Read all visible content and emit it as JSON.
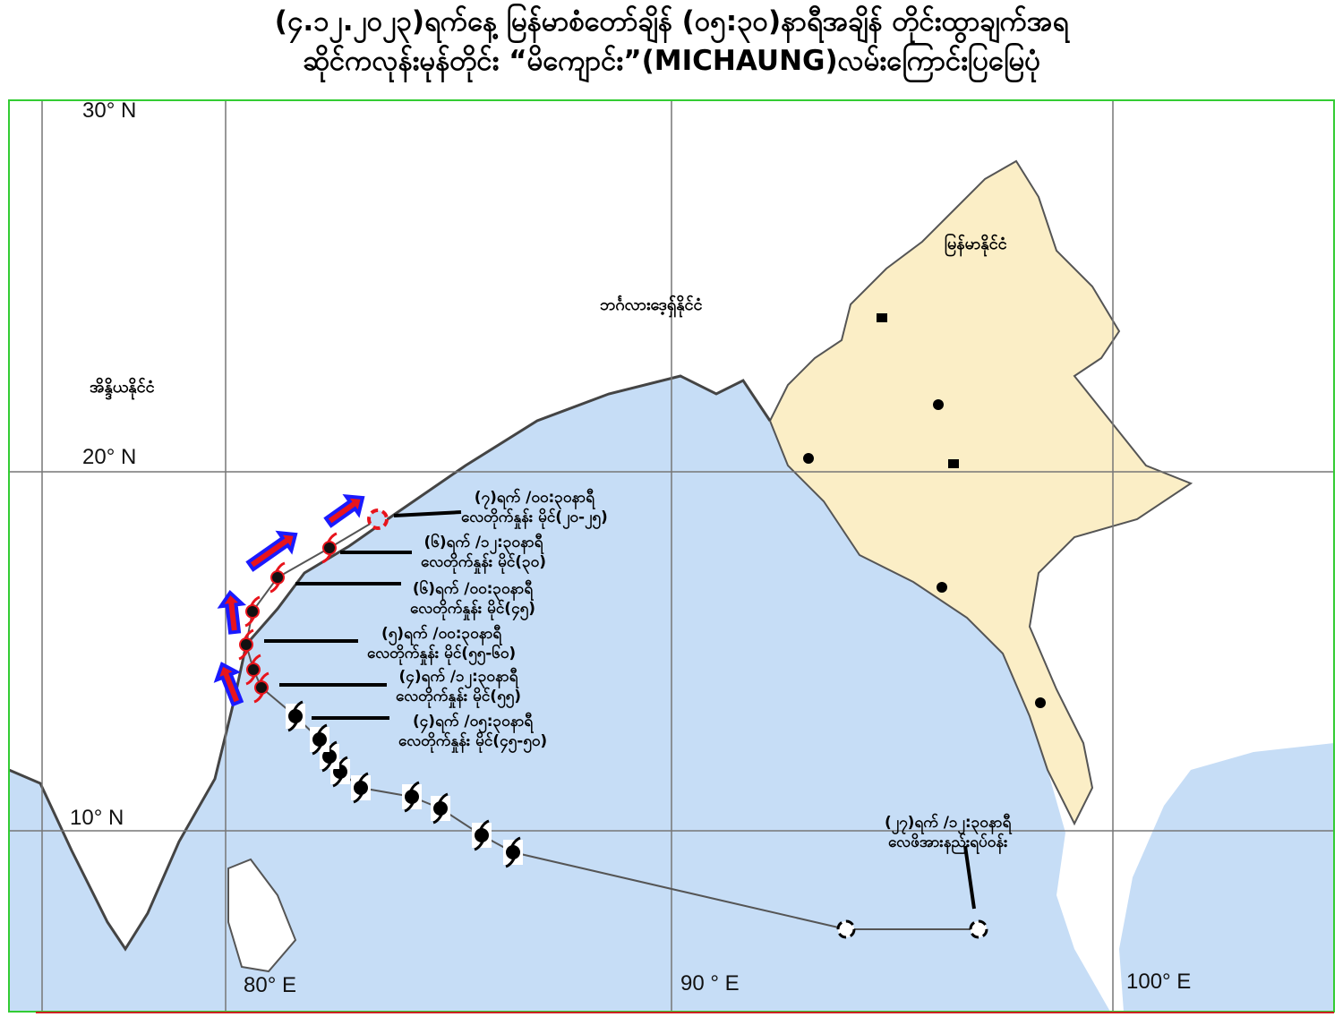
{
  "title": {
    "line1": "(၄.၁၂.၂၀၂၃)ရက်နေ့ မြန်မာစံတော်ချိန် (၀၅:၃၀)နာရီအချိန် တိုင်းထွာချက်အရ",
    "line2": "ဆိုင်ကလုန်းမုန်တိုင်း “မိကျောင်း”(MICHAUNG)လမ်းကြောင်းပြမြေပုံ"
  },
  "grid_labels": {
    "lat30": "30°  N",
    "lat20": "20°  N",
    "lat10": "10°  N",
    "lon80": "80°  E",
    "lon90": "90  °  E",
    "lon100": "100°  E"
  },
  "countries": {
    "india": "အိန္ဒိယနိုင်ငံ",
    "bangladesh": "ဘင်္ဂလားဒေ့ရှ်နိုင်ငံ",
    "myanmar": "မြန်မာနိုင်ငံ"
  },
  "track_labels": [
    {
      "time": "(၇)ရက် /၀၀:၃၀နာရီ",
      "wind": "လေတိုက်နှုန်း မိုင်(၂၀-၂၅)"
    },
    {
      "time": "(၆)ရက် /၁၂:၃၀နာရီ",
      "wind": "လေတိုက်နှုန်း မိုင်(၃၀)"
    },
    {
      "time": "(၆)ရက် /၀၀:၃၀နာရီ",
      "wind": "လေတိုက်နှုန်း မိုင်(၄၅)"
    },
    {
      "time": "(၅)ရက် /၀၀:၃၀နာရီ",
      "wind": "လေတိုက်နှုန်း မိုင်(၅၅-၆၀)"
    },
    {
      "time": "(၄)ရက် /၁၂:၃၀နာရီ",
      "wind": "လေတိုက်နှုန်း မိုင်(၅၅)"
    },
    {
      "time": "(၄)ရက် /၀၅:၃၀နာရီ",
      "wind": "လေတိုက်နှုန်း မိုင်(၄၅-၅၀)"
    },
    {
      "time": "(၂၇)ရက် /၁၂:၃၀နာရီ",
      "wind": "လေဖိအားနည်းရပ်ဝန်း"
    }
  ],
  "colors": {
    "sea": "#c6ddf6",
    "land": "#ffffff",
    "myanmar": "#fbeec6",
    "forecast": "#e8141c",
    "arrow_border": "#1a1aff",
    "frame": "#33cc33"
  },
  "icons": {
    "observed": "cyclone-symbol-black",
    "forecast": "cyclone-symbol-red",
    "low": "low-pressure-circle",
    "direction": "movement-arrow"
  }
}
